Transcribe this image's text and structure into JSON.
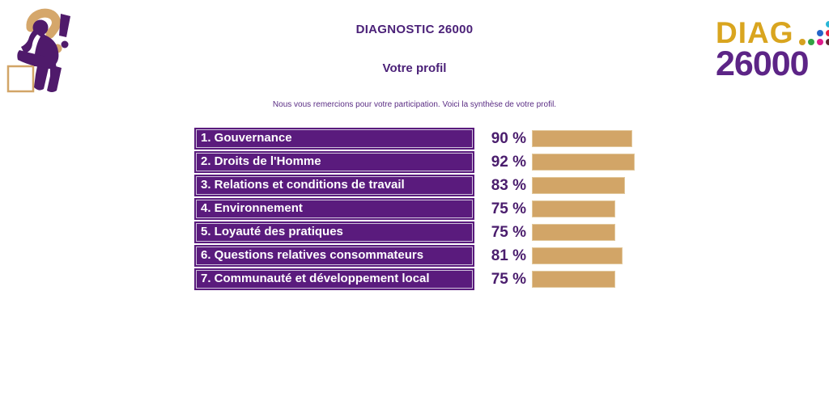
{
  "header": {
    "title": "DIAGNOSTIC 26000",
    "subtitle": "Votre profil",
    "intro": "Nous vous remercions pour votre participation. Voici la synthèse de votre profil."
  },
  "logo_right": {
    "line1": "DIAG",
    "line2": "26000",
    "dot_colors": [
      "#29b6d6",
      "#2465c8",
      "#e62144",
      "#d5a11f",
      "#33a244",
      "#df1b8c",
      "#5f2430"
    ]
  },
  "chart_data": {
    "type": "bar",
    "orientation": "horizontal",
    "categories": [
      "1. Gouvernance",
      "2. Droits de l'Homme",
      "3. Relations et conditions de travail",
      "4. Environnement",
      "5. Loyauté des pratiques",
      "6. Questions relatives consommateurs",
      "7. Communauté et développement local"
    ],
    "values": [
      90,
      92,
      83,
      75,
      75,
      81,
      75
    ],
    "value_suffix": " %",
    "xlim": [
      0,
      100
    ],
    "bar_color": "#d2a567",
    "label_bg_color": "#5a1b7d",
    "value_text_color": "#4a1d6d",
    "title": "Votre profil"
  },
  "colors": {
    "accent_purple": "#5a1b7d",
    "accent_tan": "#d2a567",
    "title_purple": "#4b2178",
    "logo_gold": "#d9a51f",
    "logo_purple": "#5c2486"
  }
}
